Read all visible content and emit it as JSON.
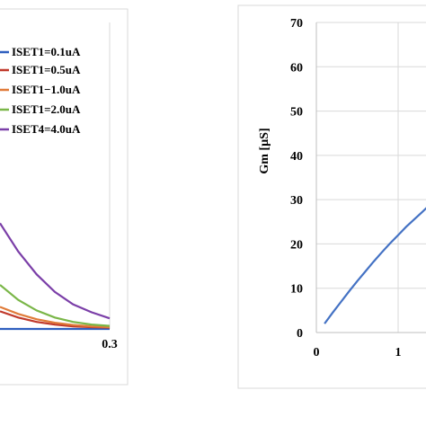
{
  "chart_data": [
    {
      "type": "line",
      "title": "",
      "xlabel": "",
      "ylabel": "",
      "x_tick_labels": [
        "0.3"
      ],
      "x_visible_range": [
        0.0,
        0.3
      ],
      "grid": false,
      "legend_position": "top-right",
      "series": [
        {
          "name": "ISET1=0.1uA",
          "color": "#2f5fbf",
          "x": [
            0.0,
            0.3
          ],
          "y": [
            0.0,
            0.0
          ]
        },
        {
          "name": "ISET1=0.5uA",
          "color": "#c0392b",
          "x": [
            0.0,
            0.05,
            0.1,
            0.15,
            0.2,
            0.25,
            0.3
          ],
          "y": [
            2.0,
            1.3,
            0.8,
            0.5,
            0.3,
            0.2,
            0.15
          ]
        },
        {
          "name": "ISET1−1.0uA",
          "color": "#e07b39",
          "x": [
            0.0,
            0.05,
            0.1,
            0.15,
            0.2,
            0.25,
            0.3
          ],
          "y": [
            2.5,
            1.7,
            1.1,
            0.7,
            0.45,
            0.3,
            0.2
          ]
        },
        {
          "name": "ISET1=2.0uA",
          "color": "#7ab648",
          "x": [
            0.0,
            0.05,
            0.1,
            0.15,
            0.2,
            0.25,
            0.3
          ],
          "y": [
            5.0,
            3.3,
            2.1,
            1.3,
            0.8,
            0.5,
            0.35
          ]
        },
        {
          "name": "ISET4=4.0uA",
          "color": "#7b3fa8",
          "x": [
            0.0,
            0.05,
            0.1,
            0.15,
            0.2,
            0.25,
            0.3
          ],
          "y": [
            12.0,
            8.8,
            6.2,
            4.2,
            2.8,
            1.9,
            1.2
          ]
        }
      ]
    },
    {
      "type": "line",
      "title": "",
      "xlabel": "",
      "ylabel": "Gm [µS]",
      "x_tick_labels": [
        "0",
        "1"
      ],
      "y_tick_labels": [
        "0",
        "10",
        "20",
        "30",
        "40",
        "50",
        "60",
        "70"
      ],
      "xlim": [
        0,
        1.35
      ],
      "ylim": [
        0,
        70
      ],
      "grid": true,
      "series": [
        {
          "name": "",
          "color": "#4472c4",
          "x": [
            0.1,
            0.2,
            0.3,
            0.4,
            0.5,
            0.6,
            0.7,
            0.8,
            0.9,
            1.0,
            1.1,
            1.2,
            1.3,
            1.35
          ],
          "y": [
            2.0,
            4.5,
            6.9,
            9.3,
            11.6,
            13.8,
            16.0,
            18.1,
            20.1,
            22.0,
            23.9,
            25.6,
            27.3,
            28.2
          ]
        }
      ]
    }
  ]
}
